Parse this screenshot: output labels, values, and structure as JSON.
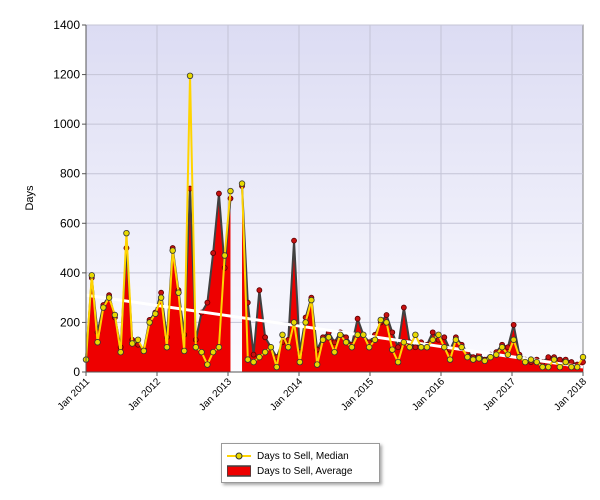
{
  "chart_data": {
    "type": "area",
    "ylabel": "Days",
    "xlabel": "",
    "ylim": [
      0,
      1400
    ],
    "xlim": [
      "2011-01",
      "2018-01"
    ],
    "y_ticks": [
      "0",
      "200",
      "400",
      "600",
      "800",
      "1000",
      "1200",
      "1400"
    ],
    "x_ticks": [
      "Jan 2011",
      "Jan 2012",
      "Jan 2013",
      "Jan 2014",
      "Jan 2015",
      "Jan 2016",
      "Jan 2017",
      "Jan 2018"
    ],
    "grid": true,
    "legend_position": "bottom",
    "legend": [
      "Days to Sell, Median",
      "Days to Sell, Average"
    ],
    "colors": {
      "median_line": "#ffd400",
      "median_marker": "#e8d900",
      "average_fill": "#ee0000",
      "average_outline": "#404040",
      "average_marker": "#c81010",
      "trend": "#ffffff",
      "plot_bg_top": "#dcdcf3",
      "plot_bg_bottom": "#fbfbff"
    },
    "series": [
      {
        "name": "Days to Sell, Median",
        "values": [
          50,
          390,
          120,
          260,
          300,
          230,
          80,
          560,
          115,
          130,
          85,
          200,
          235,
          300,
          100,
          490,
          320,
          85,
          1195,
          100,
          80,
          30,
          80,
          100,
          470,
          730,
          null,
          760,
          50,
          40,
          60,
          80,
          100,
          20,
          150,
          100,
          200,
          40,
          200,
          290,
          30,
          130,
          140,
          80,
          150,
          120,
          100,
          150,
          150,
          100,
          130,
          210,
          200,
          90,
          40,
          120,
          100,
          150,
          100,
          100,
          130,
          150,
          100,
          50,
          130,
          100,
          60,
          50,
          55,
          45,
          60,
          70,
          100,
          70,
          130,
          60,
          40,
          50,
          40,
          20,
          20,
          50,
          20,
          40,
          20,
          20,
          60
        ]
      },
      {
        "name": "Days to Sell, Average",
        "values": [
          50,
          380,
          160,
          270,
          310,
          220,
          100,
          500,
          130,
          110,
          90,
          210,
          240,
          320,
          140,
          500,
          330,
          150,
          740,
          130,
          240,
          280,
          480,
          720,
          420,
          700,
          null,
          750,
          280,
          70,
          330,
          140,
          100,
          60,
          120,
          130,
          530,
          80,
          220,
          300,
          90,
          140,
          160,
          120,
          160,
          140,
          110,
          215,
          150,
          120,
          150,
          200,
          230,
          160,
          100,
          260,
          120,
          100,
          120,
          110,
          160,
          130,
          140,
          90,
          140,
          110,
          80,
          60,
          70,
          50,
          70,
          80,
          110,
          100,
          190,
          70,
          50,
          40,
          50,
          40,
          60,
          60,
          50,
          50,
          40,
          30,
          40
        ]
      },
      {
        "name": "Trend",
        "values": [
          310,
          20
        ]
      }
    ]
  }
}
